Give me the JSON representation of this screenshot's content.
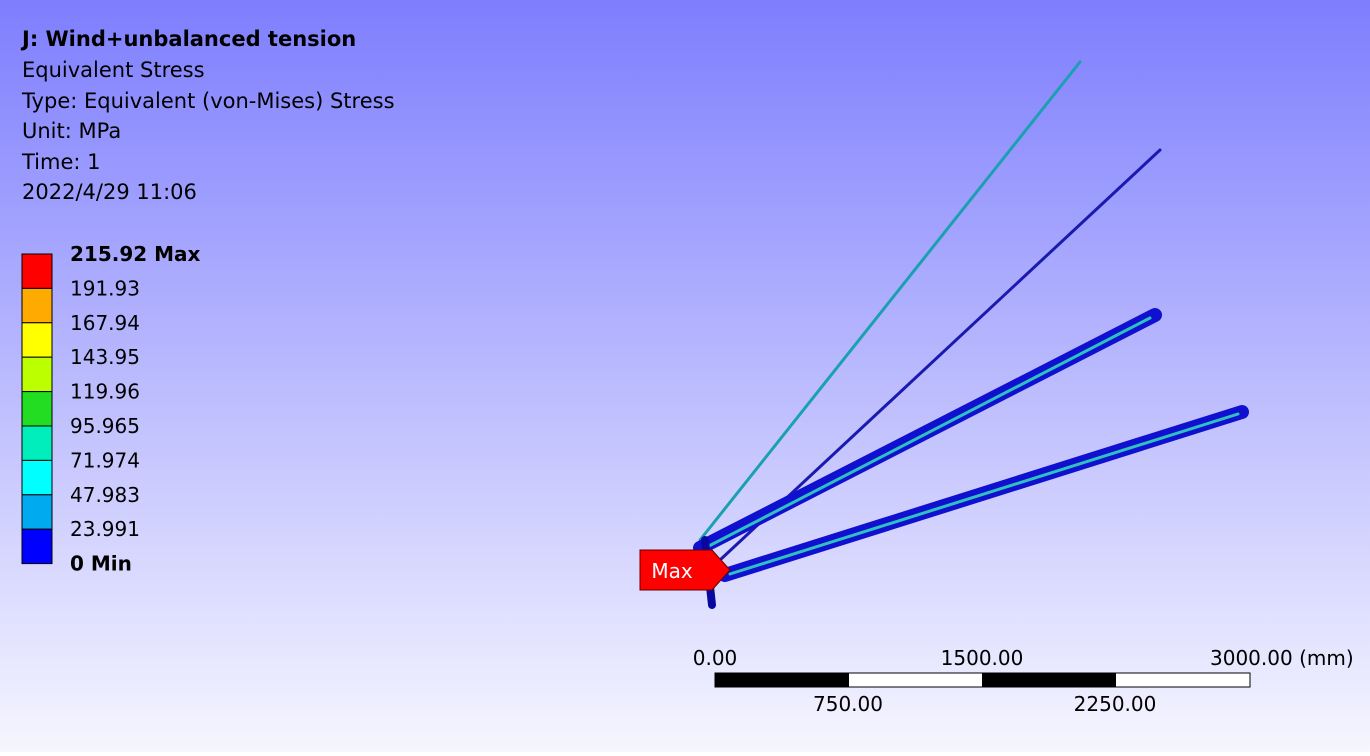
{
  "header": {
    "title": "J: Wind+unbalanced tension",
    "result": "Equivalent Stress",
    "type": "Type: Equivalent (von-Mises) Stress",
    "unit": "Unit: MPa",
    "time": "Time: 1",
    "date": "2022/4/29 11:06"
  },
  "legend": {
    "labels": [
      "215.92 Max",
      "191.93",
      "167.94",
      "143.95",
      "119.96",
      "95.965",
      "71.974",
      "47.983",
      "23.991",
      "0 Min"
    ],
    "colors": [
      "#ff0000",
      "#ffaa00",
      "#ffff00",
      "#bbff00",
      "#22dd22",
      "#00eebb",
      "#00ffff",
      "#00aaee",
      "#0000ff"
    ]
  },
  "scale": {
    "top_labels": [
      "0.00",
      "1500.00",
      "3000.00 (mm)"
    ],
    "bottom_labels": [
      "750.00",
      "2250.00"
    ]
  },
  "probe": {
    "label": "Max"
  }
}
